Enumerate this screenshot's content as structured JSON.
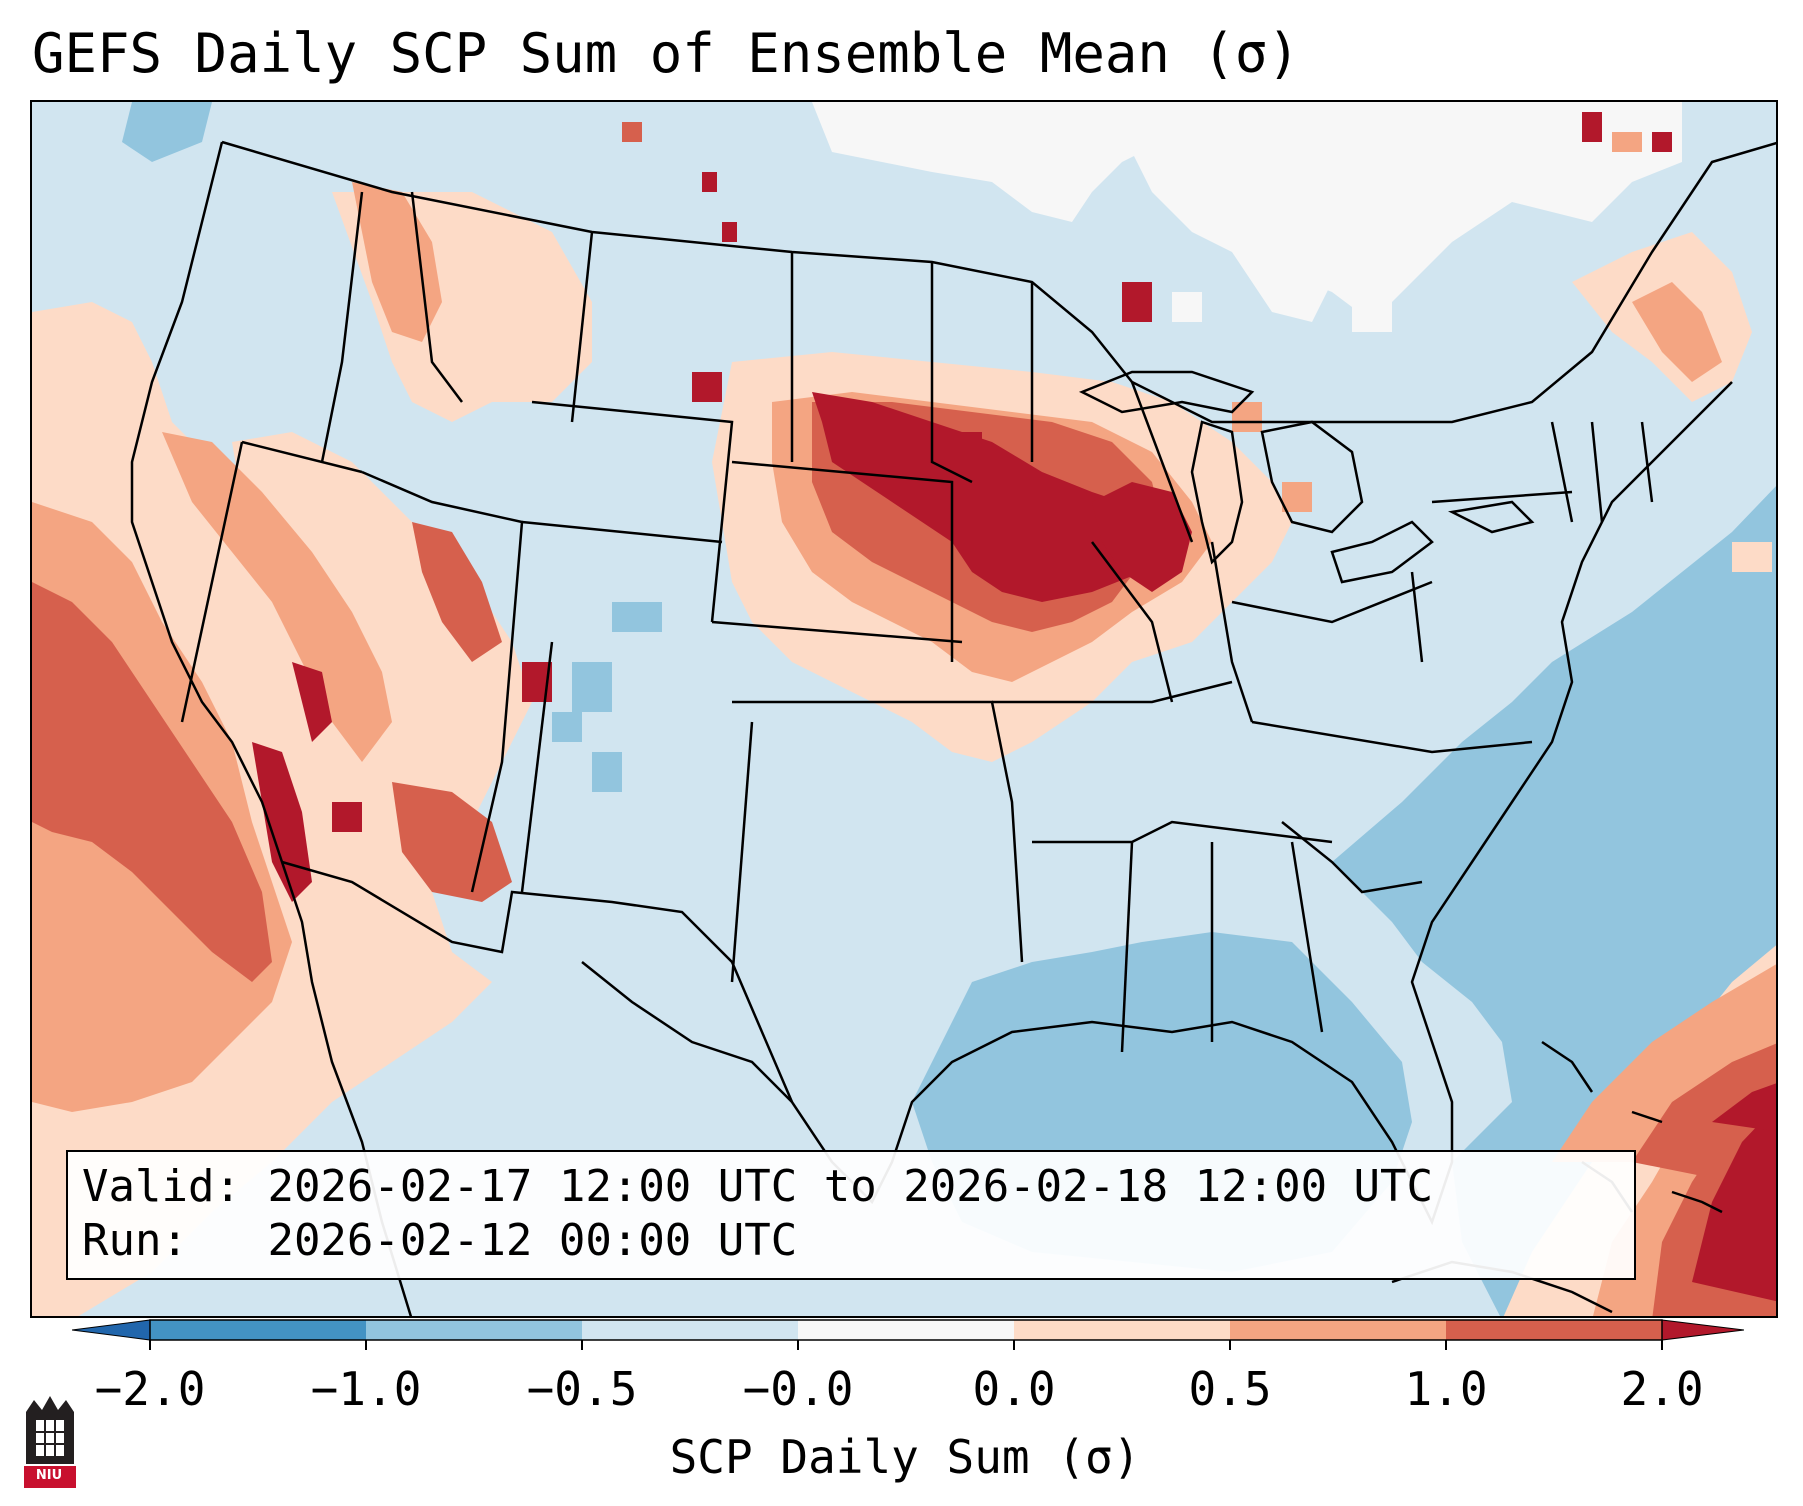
{
  "title": "GEFS Daily SCP Sum of Ensemble Mean (σ)",
  "info": {
    "valid_label": "Valid:",
    "valid_value": "2026-02-17 12:00 UTC to 2026-02-18 12:00 UTC",
    "run_label": "Run:",
    "run_value": "2026-02-12 00:00 UTC"
  },
  "colorbar": {
    "label": "SCP Daily Sum (σ)",
    "ticks": [
      "−2.0",
      "−1.0",
      "−0.5",
      "−0.0",
      "0.0",
      "0.5",
      "1.0",
      "2.0"
    ],
    "colors": [
      "#4393c3",
      "#92c5de",
      "#d1e5f0",
      "#f7f7f7",
      "#fddbc7",
      "#f4a582",
      "#d6604d",
      "#b2182b"
    ],
    "under_color": "#2166ac",
    "over_color": "#b2182b"
  },
  "map": {
    "background_color": "#d1e5f0",
    "ocean_negative_color": "#92c5de",
    "positive_light_color": "#fddbc7",
    "positive_medium_color": "#f4a582",
    "positive_strong_color": "#d6604d",
    "positive_max_color": "#b2182b",
    "neutral_color": "#f7f7f7"
  },
  "logo": {
    "text": "NIU",
    "color": "#c8102e"
  }
}
